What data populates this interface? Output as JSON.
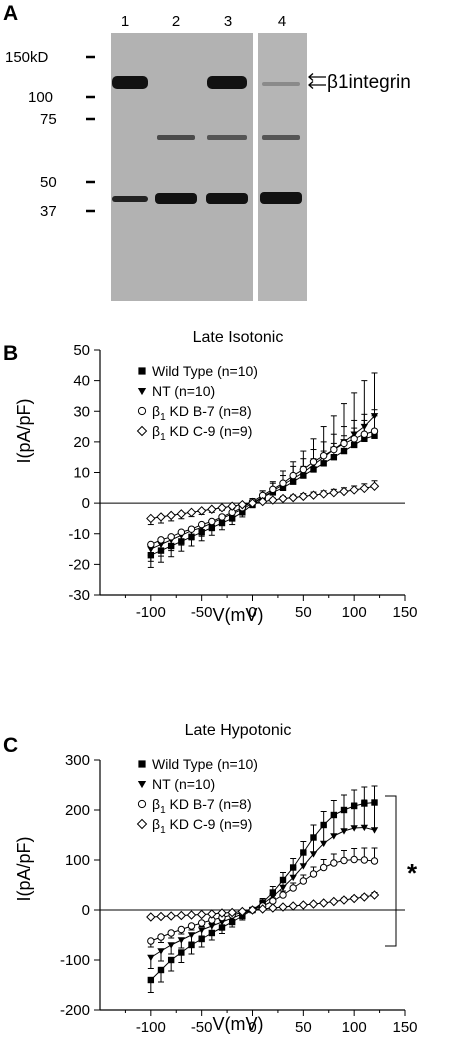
{
  "panels": {
    "A": "A",
    "B": "B",
    "C": "C"
  },
  "blot": {
    "lanes": [
      "1",
      "2",
      "3",
      "4"
    ],
    "markers": [
      "150kD",
      "100",
      "75",
      "50",
      "37"
    ],
    "band_label": "β1integrin",
    "band_label_prefix": "β",
    "band_label_suffix": "1integrin"
  },
  "chart_data": [
    {
      "type": "line",
      "title": "Late Isotonic",
      "xlabel": "V(mV)",
      "ylabel": "I(pA/pF)",
      "xlim": [
        -150,
        150
      ],
      "ylim": [
        -30,
        50
      ],
      "xticks": [
        -100,
        -50,
        0,
        50,
        100,
        150
      ],
      "yticks": [
        -30,
        -20,
        -10,
        0,
        10,
        20,
        30,
        40,
        50
      ],
      "legend_position": "top-left",
      "x": [
        -100,
        -90,
        -80,
        -70,
        -60,
        -50,
        -40,
        -30,
        -20,
        -10,
        0,
        10,
        20,
        30,
        40,
        50,
        60,
        70,
        80,
        90,
        100,
        110,
        120
      ],
      "series": [
        {
          "name": "Wild Type (n=10)",
          "name_prefix": "Wild Type (n=10)",
          "marker": "filled-square",
          "values": [
            -17,
            -15.5,
            -14,
            -12.5,
            -11,
            -9.5,
            -8,
            -6.5,
            -5,
            -3,
            -0.5,
            2,
            3.5,
            5,
            7,
            9,
            11,
            13,
            15,
            17,
            19,
            21,
            22
          ],
          "errors": [
            4,
            3.8,
            3.5,
            3.2,
            3,
            2.8,
            2.5,
            2.2,
            2,
            1.5,
            1,
            1.2,
            1.5,
            2,
            2.5,
            3,
            3.5,
            4,
            4.5,
            5,
            5.5,
            6,
            6.5
          ]
        },
        {
          "name": "NT (n=10)",
          "name_prefix": "NT (n=10)",
          "marker": "filled-triangle-down",
          "values": [
            -15,
            -13.5,
            -12,
            -10.5,
            -9,
            -8,
            -6.5,
            -5,
            -3.5,
            -2,
            0,
            2,
            4,
            6,
            8,
            10,
            12.5,
            15,
            17.5,
            20,
            22.5,
            25,
            28.5
          ],
          "errors": [
            4,
            3.8,
            3.5,
            3.2,
            3,
            2.8,
            2.5,
            2.2,
            2,
            1.5,
            1,
            2,
            3,
            4.5,
            5.5,
            7,
            8.5,
            10,
            11,
            12.5,
            13.5,
            15,
            14
          ]
        },
        {
          "name": "β1 KD B-7 (n=8)",
          "name_prefix": "β",
          "name_sub": "1",
          "name_suffix": " KD B-7 (n=8)",
          "marker": "open-circle",
          "values": [
            -13.5,
            -12,
            -11,
            -9.5,
            -8.5,
            -7,
            -6,
            -4.5,
            -3,
            -1.5,
            0.5,
            2.5,
            4.5,
            6.5,
            9,
            11,
            13.5,
            15.5,
            17.5,
            19.5,
            21,
            22.5,
            23.5
          ],
          "errors": [
            3.5,
            3.3,
            3,
            2.8,
            2.5,
            2.3,
            2,
            1.8,
            1.5,
            1.2,
            1,
            1.5,
            2,
            2.5,
            3,
            3.5,
            4,
            4.5,
            5,
            5.5,
            6,
            6.5,
            7
          ]
        },
        {
          "name": "β1 KD C-9 (n=9)",
          "name_prefix": "β",
          "name_sub": "1",
          "name_suffix": " KD C-9 (n=9)",
          "marker": "open-diamond",
          "values": [
            -5,
            -4.5,
            -4,
            -3.5,
            -3,
            -2.5,
            -2,
            -1.5,
            -1,
            -0.5,
            0,
            0.5,
            1,
            1.5,
            1.8,
            2.2,
            2.6,
            3,
            3.4,
            3.8,
            4.3,
            4.8,
            5.5
          ],
          "errors": [
            2,
            2,
            1.8,
            1.6,
            1.4,
            1.2,
            1,
            0.8,
            0.7,
            0.5,
            0.5,
            0.5,
            0.6,
            0.7,
            0.8,
            0.9,
            1,
            1,
            1.1,
            1.2,
            1.3,
            1.5,
            1.8
          ]
        }
      ]
    },
    {
      "type": "line",
      "title": "Late Hypotonic",
      "xlabel": "V(mV)",
      "ylabel": "I(pA/pF)",
      "xlim": [
        -150,
        150
      ],
      "ylim": [
        -200,
        300
      ],
      "xticks": [
        -100,
        -50,
        0,
        50,
        100,
        150
      ],
      "yticks": [
        -200,
        -100,
        0,
        100,
        200,
        300
      ],
      "legend_position": "top-left",
      "annotation": "*",
      "x": [
        -100,
        -90,
        -80,
        -70,
        -60,
        -50,
        -40,
        -30,
        -20,
        -10,
        0,
        10,
        20,
        30,
        40,
        50,
        60,
        70,
        80,
        90,
        100,
        110,
        120
      ],
      "series": [
        {
          "name": "Wild Type (n=10)",
          "name_prefix": "Wild Type (n=10)",
          "marker": "filled-square",
          "values": [
            -140,
            -120,
            -100,
            -85,
            -70,
            -58,
            -46,
            -35,
            -24,
            -12,
            0,
            15,
            35,
            60,
            85,
            115,
            145,
            170,
            190,
            200,
            208,
            213,
            215
          ],
          "errors": [
            25,
            24,
            22,
            20,
            18,
            16,
            14,
            12,
            10,
            8,
            5,
            8,
            12,
            15,
            18,
            22,
            25,
            27,
            29,
            30,
            32,
            33,
            33
          ]
        },
        {
          "name": "NT (n=10)",
          "name_prefix": "NT (n=10)",
          "marker": "filled-triangle-down",
          "values": [
            -95,
            -82,
            -70,
            -60,
            -50,
            -40,
            -32,
            -24,
            -16,
            -8,
            0,
            12,
            27,
            45,
            65,
            88,
            112,
            133,
            148,
            158,
            164,
            165,
            160
          ],
          "errors": [
            22,
            20,
            18,
            16,
            14,
            12,
            10,
            9,
            8,
            6,
            5,
            8,
            12,
            15,
            20,
            25,
            30,
            35,
            40,
            45,
            50,
            55,
            55
          ]
        },
        {
          "name": "β1 KD B-7 (n=8)",
          "name_prefix": "β",
          "name_sub": "1",
          "name_suffix": " KD B-7 (n=8)",
          "marker": "open-circle",
          "values": [
            -62,
            -54,
            -46,
            -39,
            -32,
            -26,
            -20,
            -15,
            -10,
            -5,
            0,
            8,
            18,
            30,
            44,
            58,
            72,
            85,
            94,
            99,
            101,
            100,
            98
          ],
          "errors": [
            12,
            11,
            10,
            9,
            8,
            7,
            6,
            5,
            4,
            3,
            3,
            4,
            6,
            8,
            10,
            12,
            14,
            16,
            18,
            20,
            22,
            24,
            26
          ]
        },
        {
          "name": "β1 KD C-9 (n=9)",
          "name_prefix": "β",
          "name_sub": "1",
          "name_suffix": " KD C-9 (n=9)",
          "marker": "open-diamond",
          "values": [
            -14,
            -13,
            -12,
            -11,
            -10,
            -9,
            -8,
            -6,
            -5,
            -3,
            0,
            2,
            4,
            6,
            8,
            10,
            12,
            14,
            17,
            20,
            23,
            26,
            30
          ],
          "errors": [
            3,
            3,
            3,
            3,
            3,
            3,
            2,
            2,
            2,
            2,
            1,
            2,
            2,
            2,
            2,
            3,
            3,
            3,
            3,
            4,
            4,
            4,
            5
          ]
        }
      ]
    }
  ]
}
